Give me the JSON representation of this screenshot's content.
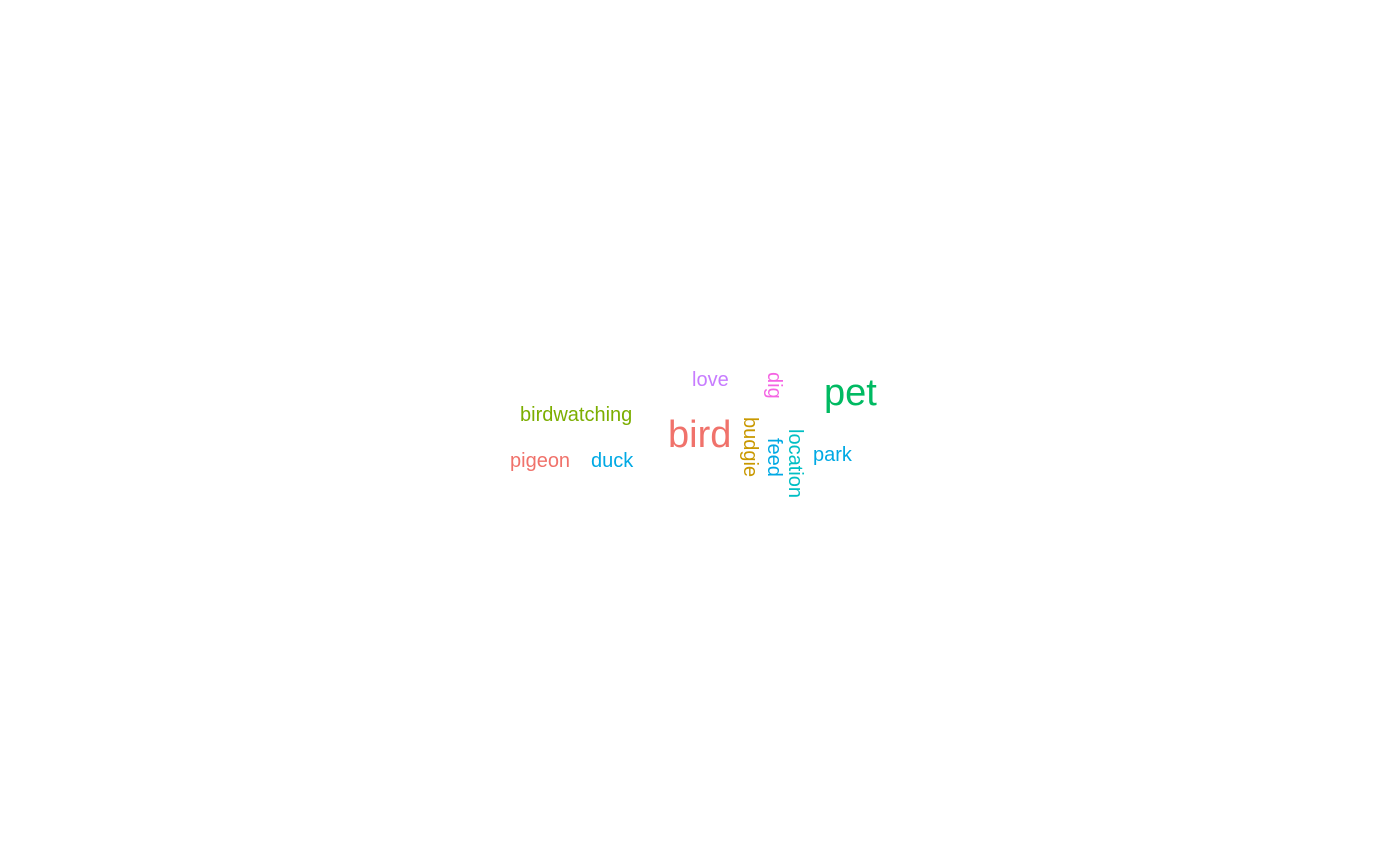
{
  "words": {
    "bird": {
      "text": "bird",
      "color": "#F0726B"
    },
    "pet": {
      "text": "pet",
      "color": "#00BA62"
    },
    "birdwatching": {
      "text": "birdwatching",
      "color": "#7CAE00"
    },
    "pigeon": {
      "text": "pigeon",
      "color": "#F0726B"
    },
    "duck": {
      "text": "duck",
      "color": "#00A9E4"
    },
    "love": {
      "text": "love",
      "color": "#C77CFF"
    },
    "dig": {
      "text": "dig",
      "color": "#F564E3"
    },
    "budgie": {
      "text": "budgie",
      "color": "#C99800"
    },
    "feed": {
      "text": "feed",
      "color": "#00A9E4"
    },
    "location": {
      "text": "location",
      "color": "#00BFC4"
    },
    "park": {
      "text": "park",
      "color": "#00A9E4"
    }
  }
}
